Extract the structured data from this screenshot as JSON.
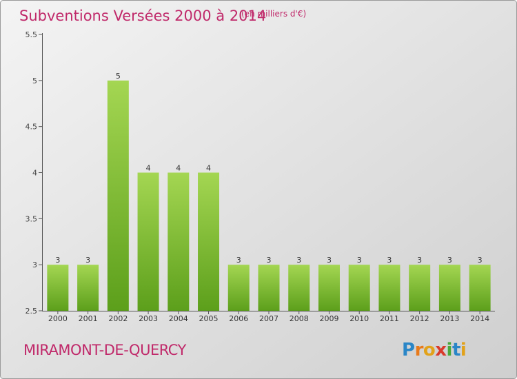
{
  "title": "Subventions Versées 2000 à 2014",
  "subtitle": "(en milliers d'€)",
  "place": "MIRAMONT-DE-QUERCY",
  "logo": "Proxiti",
  "colors": {
    "title": "#c0296a",
    "bar_light": "#9fd24c",
    "bar_dark": "#5a9e1a",
    "axis": "#555555"
  },
  "chart_data": {
    "type": "bar",
    "title": "Subventions Versées 2000 à 2014",
    "categories": [
      "2000",
      "2001",
      "2002",
      "2003",
      "2004",
      "2005",
      "2006",
      "2007",
      "2008",
      "2009",
      "2010",
      "2011",
      "2012",
      "2013",
      "2014"
    ],
    "values": [
      3,
      3,
      5,
      4,
      4,
      4,
      3,
      3,
      3,
      3,
      3,
      3,
      3,
      3,
      3
    ],
    "ylim": [
      2.5,
      5.5
    ],
    "yticks": [
      2.5,
      3,
      3.5,
      4,
      4.5,
      5,
      5.5
    ],
    "ytick_labels": [
      "2.5",
      "3",
      "3.5",
      "4",
      "4.5",
      "5",
      "5.5"
    ],
    "grid": false,
    "xlabel": "",
    "ylabel": ""
  }
}
